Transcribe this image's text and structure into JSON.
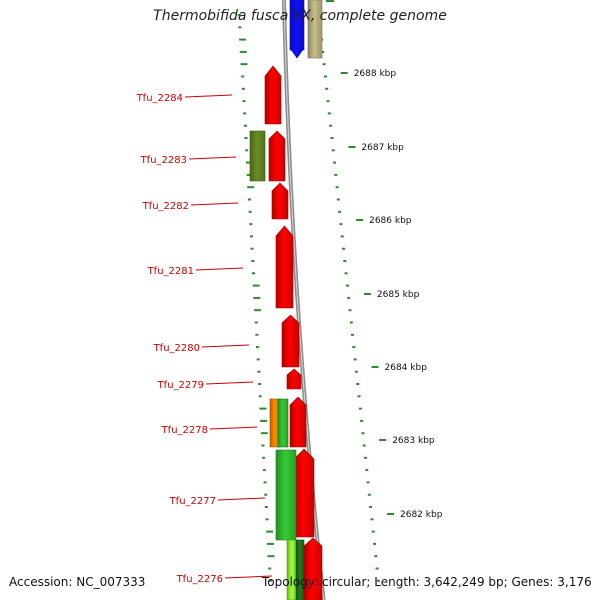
{
  "map": {
    "title": "Thermobifida fusca YX, complete genome",
    "accession": "Accession: NC_007333",
    "summary": "Topology: circular; Length: 3,642,249 bp; Genes: 3,176",
    "scale_ticks": [
      "2688 kbp",
      "2687 kbp",
      "2686 kbp",
      "2685 kbp",
      "2684 kbp",
      "2683 kbp",
      "2682 kbp"
    ],
    "gene_labels": [
      "Tfu_2284",
      "Tfu_2283",
      "Tfu_2282",
      "Tfu_2281",
      "Tfu_2280",
      "Tfu_2279",
      "Tfu_2278",
      "Tfu_2277",
      "Tfu_2276"
    ],
    "colors": {
      "cds": "#ff0000",
      "label": "#cc0000",
      "backbone": "#8c8c8c",
      "ticks": "#2d8a2d",
      "blue": "#1010ff",
      "tan": "#c9bd8a",
      "olive": "#6b8e23",
      "orange": "#ff8c00",
      "light_green": "#33cc33",
      "lime": "#99ff33",
      "dark_green": "#1f7a1f"
    }
  }
}
